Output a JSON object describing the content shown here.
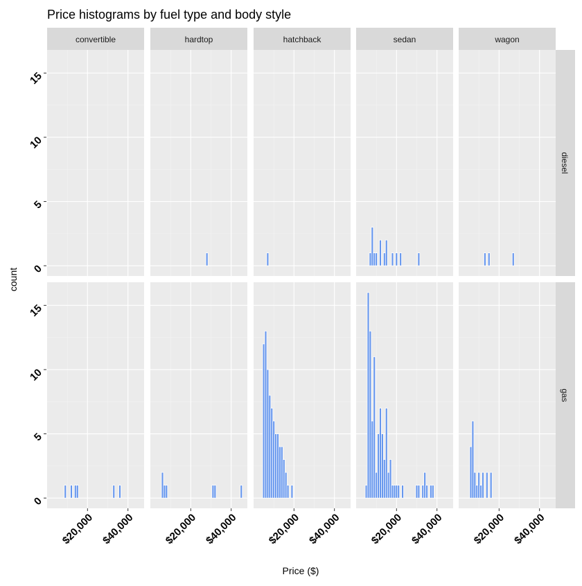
{
  "chart_data": {
    "type": "bar",
    "title": "Price histograms by fuel type and body style",
    "xlabel": "Price ($)",
    "ylabel": "count",
    "xlim": [
      0,
      48000
    ],
    "ylim": [
      -0.8,
      16.8
    ],
    "x_ticks": [
      20000,
      40000
    ],
    "x_tick_labels": [
      "$20,000",
      "$40,000"
    ],
    "y_ticks": [
      0,
      5,
      10,
      15
    ],
    "y_tick_labels": [
      "0",
      "5",
      "10",
      "15"
    ],
    "bin_width": 1000,
    "grid": true,
    "legend": "none",
    "bar_color": "#6495ED",
    "panel_background": "#EBEBEB",
    "strip_background": "#D9D9D9",
    "columns": [
      "convertible",
      "hardtop",
      "hatchback",
      "sedan",
      "wagon"
    ],
    "rows": [
      "diesel",
      "gas"
    ],
    "panels": [
      {
        "row": "diesel",
        "col": "convertible",
        "bins": []
      },
      {
        "row": "diesel",
        "col": "hardtop",
        "bins": [
          {
            "x": 28000,
            "count": 1
          }
        ]
      },
      {
        "row": "diesel",
        "col": "hatchback",
        "bins": [
          {
            "x": 7000,
            "count": 1
          }
        ]
      },
      {
        "row": "diesel",
        "col": "sedan",
        "bins": [
          {
            "x": 7000,
            "count": 1
          },
          {
            "x": 8000,
            "count": 3
          },
          {
            "x": 9000,
            "count": 1
          },
          {
            "x": 10000,
            "count": 1
          },
          {
            "x": 12000,
            "count": 2
          },
          {
            "x": 14000,
            "count": 1
          },
          {
            "x": 15000,
            "count": 2
          },
          {
            "x": 18000,
            "count": 1
          },
          {
            "x": 20000,
            "count": 1
          },
          {
            "x": 22000,
            "count": 1
          },
          {
            "x": 31000,
            "count": 1
          }
        ]
      },
      {
        "row": "diesel",
        "col": "wagon",
        "bins": [
          {
            "x": 13000,
            "count": 1
          },
          {
            "x": 15000,
            "count": 1
          },
          {
            "x": 27000,
            "count": 1
          }
        ]
      },
      {
        "row": "gas",
        "col": "convertible",
        "bins": [
          {
            "x": 9000,
            "count": 1
          },
          {
            "x": 12000,
            "count": 1
          },
          {
            "x": 14000,
            "count": 1
          },
          {
            "x": 15000,
            "count": 1
          },
          {
            "x": 33000,
            "count": 1
          },
          {
            "x": 36000,
            "count": 1
          }
        ]
      },
      {
        "row": "gas",
        "col": "hardtop",
        "bins": [
          {
            "x": 6000,
            "count": 2
          },
          {
            "x": 7000,
            "count": 1
          },
          {
            "x": 8000,
            "count": 1
          },
          {
            "x": 31000,
            "count": 1
          },
          {
            "x": 32000,
            "count": 1
          },
          {
            "x": 45000,
            "count": 1
          }
        ]
      },
      {
        "row": "gas",
        "col": "hatchback",
        "bins": [
          {
            "x": 5000,
            "count": 12
          },
          {
            "x": 6000,
            "count": 13
          },
          {
            "x": 7000,
            "count": 10
          },
          {
            "x": 8000,
            "count": 8
          },
          {
            "x": 9000,
            "count": 7
          },
          {
            "x": 10000,
            "count": 6
          },
          {
            "x": 11000,
            "count": 5
          },
          {
            "x": 12000,
            "count": 5
          },
          {
            "x": 13000,
            "count": 4
          },
          {
            "x": 14000,
            "count": 4
          },
          {
            "x": 15000,
            "count": 3
          },
          {
            "x": 16000,
            "count": 2
          },
          {
            "x": 17000,
            "count": 1
          },
          {
            "x": 19000,
            "count": 1
          }
        ]
      },
      {
        "row": "gas",
        "col": "sedan",
        "bins": [
          {
            "x": 5000,
            "count": 1
          },
          {
            "x": 6000,
            "count": 16
          },
          {
            "x": 7000,
            "count": 13
          },
          {
            "x": 8000,
            "count": 6
          },
          {
            "x": 9000,
            "count": 11
          },
          {
            "x": 10000,
            "count": 2
          },
          {
            "x": 11000,
            "count": 5
          },
          {
            "x": 12000,
            "count": 7
          },
          {
            "x": 13000,
            "count": 5
          },
          {
            "x": 14000,
            "count": 3
          },
          {
            "x": 15000,
            "count": 7
          },
          {
            "x": 16000,
            "count": 2
          },
          {
            "x": 17000,
            "count": 3
          },
          {
            "x": 18000,
            "count": 1
          },
          {
            "x": 19000,
            "count": 1
          },
          {
            "x": 20000,
            "count": 1
          },
          {
            "x": 21000,
            "count": 1
          },
          {
            "x": 23000,
            "count": 1
          },
          {
            "x": 30000,
            "count": 1
          },
          {
            "x": 31000,
            "count": 1
          },
          {
            "x": 33000,
            "count": 1
          },
          {
            "x": 34000,
            "count": 2
          },
          {
            "x": 35000,
            "count": 1
          },
          {
            "x": 37000,
            "count": 1
          },
          {
            "x": 38000,
            "count": 1
          }
        ]
      },
      {
        "row": "gas",
        "col": "wagon",
        "bins": [
          {
            "x": 6000,
            "count": 4
          },
          {
            "x": 7000,
            "count": 6
          },
          {
            "x": 8000,
            "count": 2
          },
          {
            "x": 9000,
            "count": 1
          },
          {
            "x": 10000,
            "count": 2
          },
          {
            "x": 11000,
            "count": 1
          },
          {
            "x": 12000,
            "count": 2
          },
          {
            "x": 14000,
            "count": 2
          },
          {
            "x": 16000,
            "count": 2
          }
        ]
      }
    ]
  }
}
